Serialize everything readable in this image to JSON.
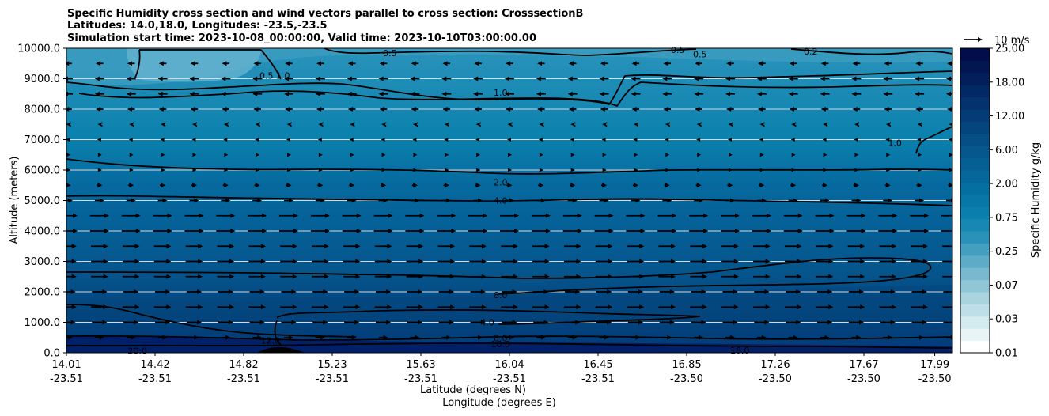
{
  "chart_data": {
    "type": "contour",
    "title_lines": [
      "Specific Humidity cross section and wind vectors parallel to cross section: CrosssectionB",
      "Latitudes: 14.0,18.0, Longitudes: -23.5,-23.5",
      "Simulation start time: 2023-10-08_00:00:00, Valid time: 2023-10-10T03:00:00.00"
    ],
    "xlabel": "Latitude (degrees N)",
    "xlabel2": "Longitude (degrees E)",
    "ylabel": "Altitude (meters)",
    "ylim": [
      0,
      10000
    ],
    "y_ticks": [
      {
        "value": 0,
        "label": "0.0"
      },
      {
        "value": 1000,
        "label": "1000.0"
      },
      {
        "value": 2000,
        "label": "2000.0"
      },
      {
        "value": 3000,
        "label": "3000.0"
      },
      {
        "value": 4000,
        "label": "4000.0"
      },
      {
        "value": 5000,
        "label": "5000.0"
      },
      {
        "value": 6000,
        "label": "6000.0"
      },
      {
        "value": 7000,
        "label": "7000.0"
      },
      {
        "value": 8000,
        "label": "8000.0"
      },
      {
        "value": 9000,
        "label": "9000.0"
      },
      {
        "value": 10000,
        "label": "10000.0"
      }
    ],
    "xlim": [
      0,
      1
    ],
    "x_ticks": [
      {
        "pos": 0.0,
        "lat": "14.01",
        "lon": "-23.51"
      },
      {
        "pos": 0.1,
        "lat": "14.42",
        "lon": "-23.51"
      },
      {
        "pos": 0.2,
        "lat": "14.82",
        "lon": "-23.51"
      },
      {
        "pos": 0.3,
        "lat": "15.23",
        "lon": "-23.51"
      },
      {
        "pos": 0.4,
        "lat": "15.63",
        "lon": "-23.51"
      },
      {
        "pos": 0.5,
        "lat": "16.04",
        "lon": "-23.51"
      },
      {
        "pos": 0.6,
        "lat": "16.45",
        "lon": "-23.51"
      },
      {
        "pos": 0.7,
        "lat": "16.85",
        "lon": "-23.50"
      },
      {
        "pos": 0.8,
        "lat": "17.26",
        "lon": "-23.50"
      },
      {
        "pos": 0.9,
        "lat": "17.67",
        "lon": "-23.50"
      },
      {
        "pos": 0.98,
        "lat": "17.99",
        "lon": "-23.50"
      }
    ],
    "colorbar": {
      "label": "Specific Humidity g/kg",
      "ticks": [
        "0.01",
        "0.03",
        "0.07",
        "0.25",
        "0.75",
        "2.00",
        "6.00",
        "12.00",
        "18.00",
        "25.00"
      ],
      "colors": [
        "#ffffff",
        "#e8f4f6",
        "#d3eaee",
        "#bfdfe7",
        "#a8d3df",
        "#91c6d7",
        "#78b9cf",
        "#5eabc7",
        "#449ebf",
        "#2a92b9",
        "#1688b2",
        "#0a7eac",
        "#0677a7",
        "#066fa2",
        "#06679b",
        "#055f95",
        "#05578e",
        "#054e86",
        "#04457e",
        "#043c76",
        "#03326d",
        "#032964",
        "#021f5b",
        "#021652",
        "#020e4b"
      ]
    },
    "contour_labels": [
      {
        "text": "0.5",
        "x": 0.365,
        "y": 9850
      },
      {
        "text": "0.5",
        "x": 0.69,
        "y": 9950
      },
      {
        "text": "0.5",
        "x": 0.715,
        "y": 9800
      },
      {
        "text": "0.2",
        "x": 0.84,
        "y": 9900
      },
      {
        "text": "0.5 1.0",
        "x": 0.235,
        "y": 9100
      },
      {
        "text": "1.0",
        "x": 0.49,
        "y": 8550
      },
      {
        "text": "1.0",
        "x": 0.935,
        "y": 6900
      },
      {
        "text": "2.0",
        "x": 0.49,
        "y": 5600
      },
      {
        "text": "4.0",
        "x": 0.49,
        "y": 5000
      },
      {
        "text": "8.0",
        "x": 0.49,
        "y": 1900
      },
      {
        "text": "4.0",
        "x": 0.475,
        "y": 1000
      },
      {
        "text": "8.0",
        "x": 0.49,
        "y": 480
      },
      {
        "text": "16.0",
        "x": 0.49,
        "y": 280
      },
      {
        "text": "20.0",
        "x": 0.08,
        "y": 70
      },
      {
        "text": "12.0",
        "x": 0.23,
        "y": 400
      },
      {
        "text": "16.0",
        "x": 0.76,
        "y": 80
      }
    ],
    "wind_levels": [
      {
        "alt": 9500,
        "u": -4
      },
      {
        "alt": 9000,
        "u": -5
      },
      {
        "alt": 8500,
        "u": -5
      },
      {
        "alt": 8000,
        "u": -4
      },
      {
        "alt": 7500,
        "u": -2
      },
      {
        "alt": 7000,
        "u": -1
      },
      {
        "alt": 6500,
        "u": 0.5
      },
      {
        "alt": 6000,
        "u": 1
      },
      {
        "alt": 5500,
        "u": 3
      },
      {
        "alt": 5000,
        "u": 5
      },
      {
        "alt": 4500,
        "u": 10
      },
      {
        "alt": 4000,
        "u": 10
      },
      {
        "alt": 3500,
        "u": 9
      },
      {
        "alt": 3000,
        "u": 9
      },
      {
        "alt": 2500,
        "u": 9
      },
      {
        "alt": 2000,
        "u": 8
      },
      {
        "alt": 1500,
        "u": 9
      },
      {
        "alt": 1000,
        "u": 8
      },
      {
        "alt": 500,
        "u": 5
      }
    ],
    "wind_key_label": "10 m/s",
    "wind_key_speed": 10
  }
}
